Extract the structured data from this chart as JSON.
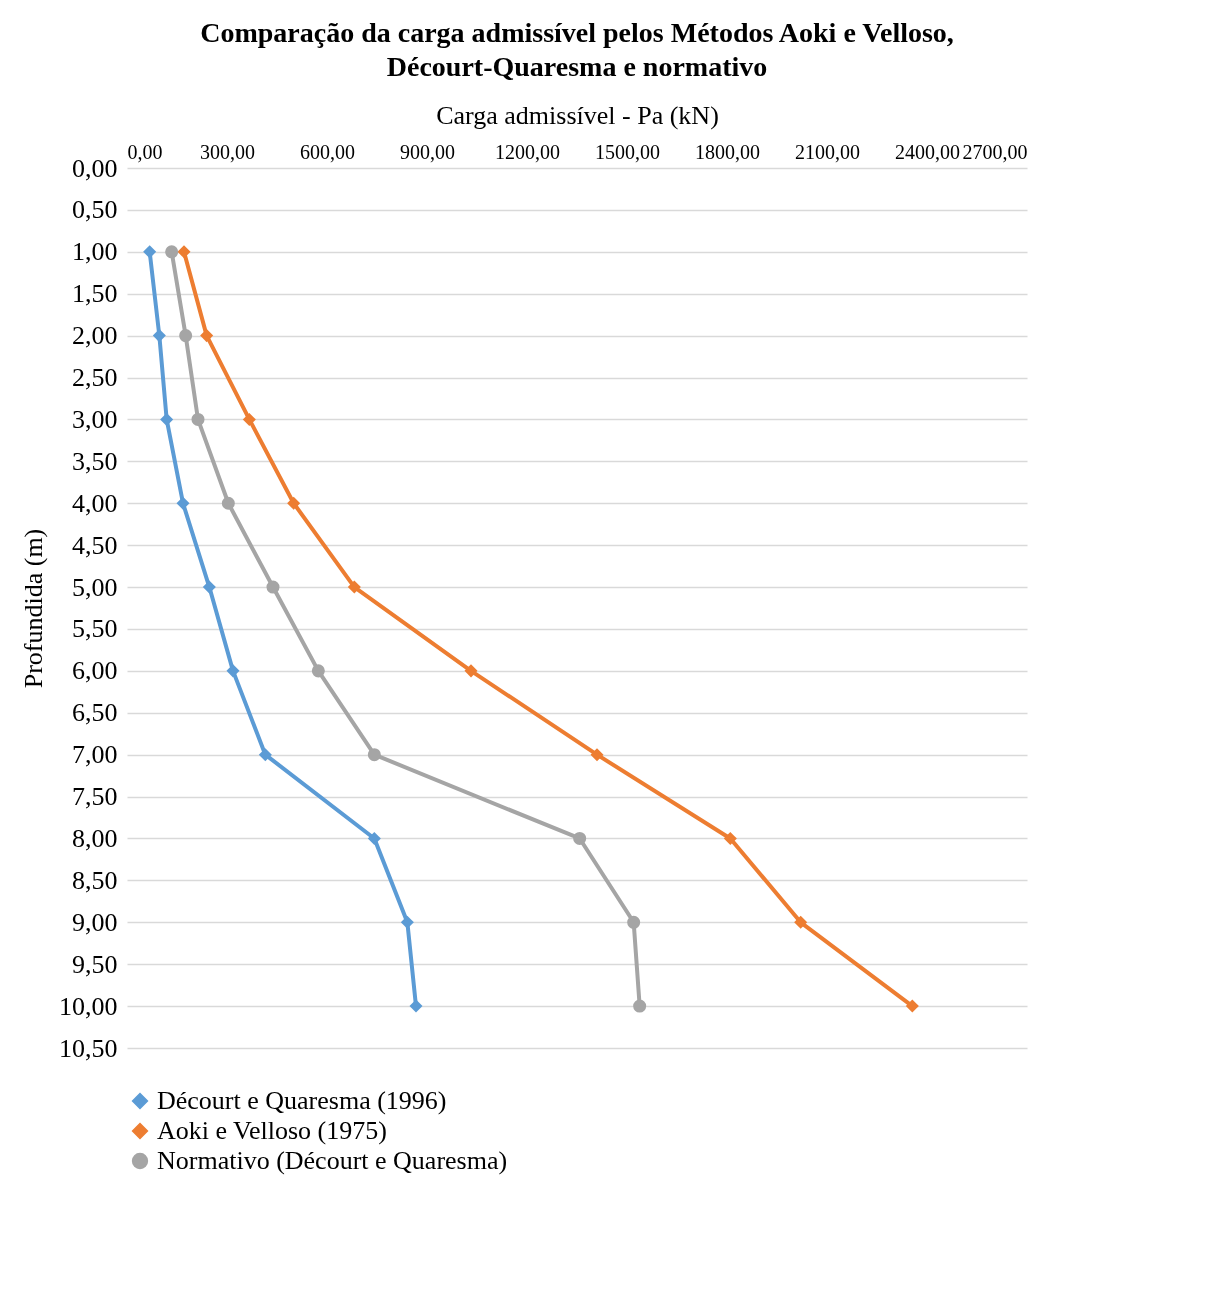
{
  "chart_data": {
    "type": "line",
    "title": "Comparação da carga admissível pelos Métodos Aoki e Velloso, Décourt-Quaresma e normativo",
    "xlabel": "Carga admissível - Pa (kN)",
    "ylabel": "Profundida (m)",
    "xlim": [
      0,
      2700
    ],
    "xticks": [
      {
        "value": 0,
        "label": "0,00"
      },
      {
        "value": 300,
        "label": "300,00"
      },
      {
        "value": 600,
        "label": "600,00"
      },
      {
        "value": 900,
        "label": "900,00"
      },
      {
        "value": 1200,
        "label": "1200,00"
      },
      {
        "value": 1500,
        "label": "1500,00"
      },
      {
        "value": 1800,
        "label": "1800,00"
      },
      {
        "value": 2100,
        "label": "2100,00"
      },
      {
        "value": 2400,
        "label": "2400,00"
      },
      {
        "value": 2700,
        "label": "2700,00"
      }
    ],
    "ylim": [
      10.5,
      0
    ],
    "yticks": [
      {
        "value": 0,
        "label": "0,00"
      },
      {
        "value": 0.5,
        "label": "0,50"
      },
      {
        "value": 1,
        "label": "1,00"
      },
      {
        "value": 1.5,
        "label": "1,50"
      },
      {
        "value": 2,
        "label": "2,00"
      },
      {
        "value": 2.5,
        "label": "2,50"
      },
      {
        "value": 3,
        "label": "3,00"
      },
      {
        "value": 3.5,
        "label": "3,50"
      },
      {
        "value": 4,
        "label": "4,00"
      },
      {
        "value": 4.5,
        "label": "4,50"
      },
      {
        "value": 5,
        "label": "5,00"
      },
      {
        "value": 5.5,
        "label": "5,50"
      },
      {
        "value": 6,
        "label": "6,00"
      },
      {
        "value": 6.5,
        "label": "6,50"
      },
      {
        "value": 7,
        "label": "7,00"
      },
      {
        "value": 7.5,
        "label": "7,50"
      },
      {
        "value": 8,
        "label": "8,00"
      },
      {
        "value": 8.5,
        "label": "8,50"
      },
      {
        "value": 9,
        "label": "9,00"
      },
      {
        "value": 9.5,
        "label": "9,50"
      },
      {
        "value": 10,
        "label": "10,00"
      },
      {
        "value": 10.5,
        "label": "10,50"
      }
    ],
    "grid": "y",
    "legend": "bottom",
    "series": [
      {
        "name": "Décourt e Quaresma (1996)",
        "color": "#5b9bd5",
        "marker": "diamond",
        "x": [
          68,
          97,
          119,
          168,
          247,
          318,
          415,
          742,
          841,
          867
        ],
        "values": [
          1,
          2,
          3,
          4,
          5,
          6,
          7,
          8,
          9,
          10
        ]
      },
      {
        "name": "Aoki e Velloso (1975)",
        "color": "#ed7d31",
        "marker": "diamond",
        "x": [
          171,
          239,
          367,
          500,
          682,
          1032,
          1410,
          1810,
          2021,
          2356
        ],
        "values": [
          1,
          2,
          3,
          4,
          5,
          6,
          7,
          8,
          9,
          10
        ]
      },
      {
        "name": "Normativo (Décourt e Quaresma)",
        "color": "#a5a5a5",
        "marker": "circle",
        "x": [
          134,
          176,
          213,
          304,
          438,
          574,
          742,
          1358,
          1520,
          1538
        ],
        "values": [
          1,
          2,
          3,
          4,
          5,
          6,
          7,
          8,
          9,
          10
        ]
      }
    ]
  }
}
